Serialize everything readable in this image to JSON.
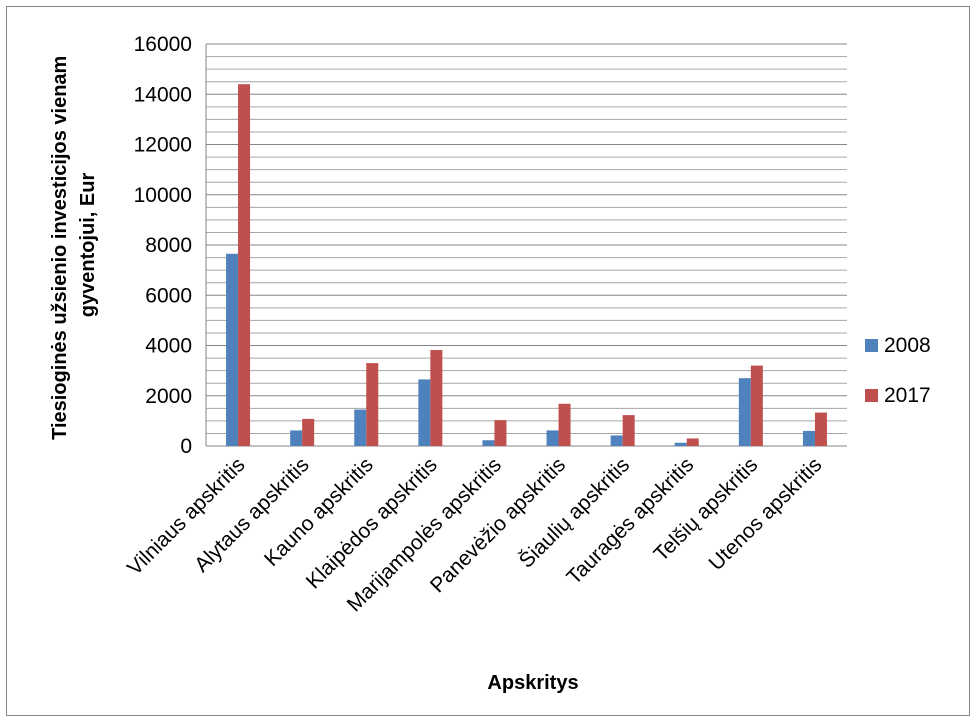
{
  "chart_data": {
    "type": "bar",
    "title": "",
    "xlabel": "Apskritys",
    "ylabel": "Tiesioginės užsienio investicijos vienam gyventojui, Eur",
    "ylabel_lines": [
      "Tiesioginės užsienio investicijos vienam",
      "gyventojui, Eur"
    ],
    "ylim": [
      0,
      16000
    ],
    "yticks": [
      "0",
      "2000",
      "4000",
      "6000",
      "8000",
      "10000",
      "12000",
      "14000",
      "16000"
    ],
    "grid": true,
    "legend_position": "right",
    "categories": [
      "Vilniaus apskritis",
      "Alytaus apskritis",
      "Kauno apskritis",
      "Klaipėdos apskritis",
      "Marijampolės apskritis",
      "Panevėžio apskritis",
      "Šiaulių apskritis",
      "Tauragės apskritis",
      "Telšių apskritis",
      "Utenos apskritis"
    ],
    "series": [
      {
        "name": "2008",
        "color": "#4F81BD",
        "values": [
          7650,
          620,
          1450,
          2650,
          230,
          620,
          420,
          130,
          2700,
          600
        ]
      },
      {
        "name": "2017",
        "color": "#C0504D",
        "values": [
          14400,
          1080,
          3300,
          3820,
          1030,
          1680,
          1230,
          300,
          3200,
          1330
        ]
      }
    ]
  }
}
